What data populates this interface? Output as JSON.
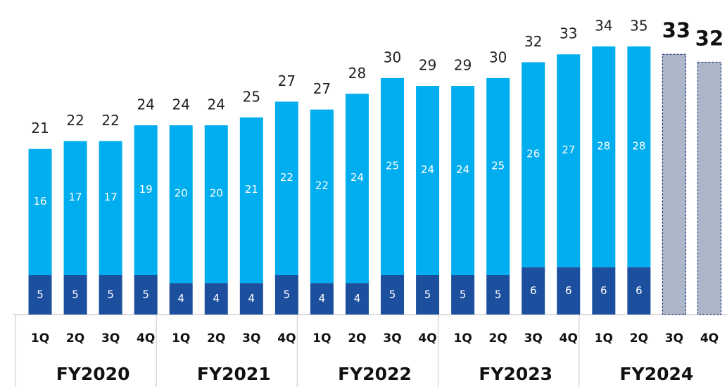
{
  "chart_data": {
    "type": "stacked_bar",
    "categories": [
      "1Q",
      "2Q",
      "3Q",
      "4Q",
      "1Q",
      "2Q",
      "3Q",
      "4Q",
      "1Q",
      "2Q",
      "3Q",
      "4Q",
      "1Q",
      "2Q",
      "3Q",
      "4Q",
      "1Q",
      "2Q",
      "3Q",
      "4Q"
    ],
    "groups": [
      "FY2020",
      "FY2021",
      "FY2022",
      "FY2023",
      "FY2024"
    ],
    "series": [
      {
        "color": "#1c4f9e",
        "values": [
          5,
          5,
          5,
          5,
          4,
          4,
          4,
          5,
          4,
          4,
          5,
          5,
          5,
          5,
          6,
          6,
          6,
          6,
          null,
          null
        ]
      },
      {
        "color": "#00aeef",
        "values": [
          16,
          17,
          17,
          19,
          20,
          20,
          21,
          22,
          22,
          24,
          25,
          24,
          24,
          25,
          26,
          27,
          28,
          28,
          null,
          null
        ]
      },
      {
        "color": "#adb6c9",
        "border": "#1c3a7a",
        "values": [
          null,
          null,
          null,
          null,
          null,
          null,
          null,
          null,
          null,
          null,
          null,
          null,
          null,
          null,
          null,
          null,
          null,
          null,
          33,
          32
        ]
      }
    ],
    "totals": [
      21,
      22,
      22,
      24,
      24,
      24,
      25,
      27,
      27,
      28,
      30,
      29,
      29,
      30,
      32,
      33,
      34,
      35,
      33,
      32
    ],
    "ylim": [
      0,
      39
    ]
  }
}
